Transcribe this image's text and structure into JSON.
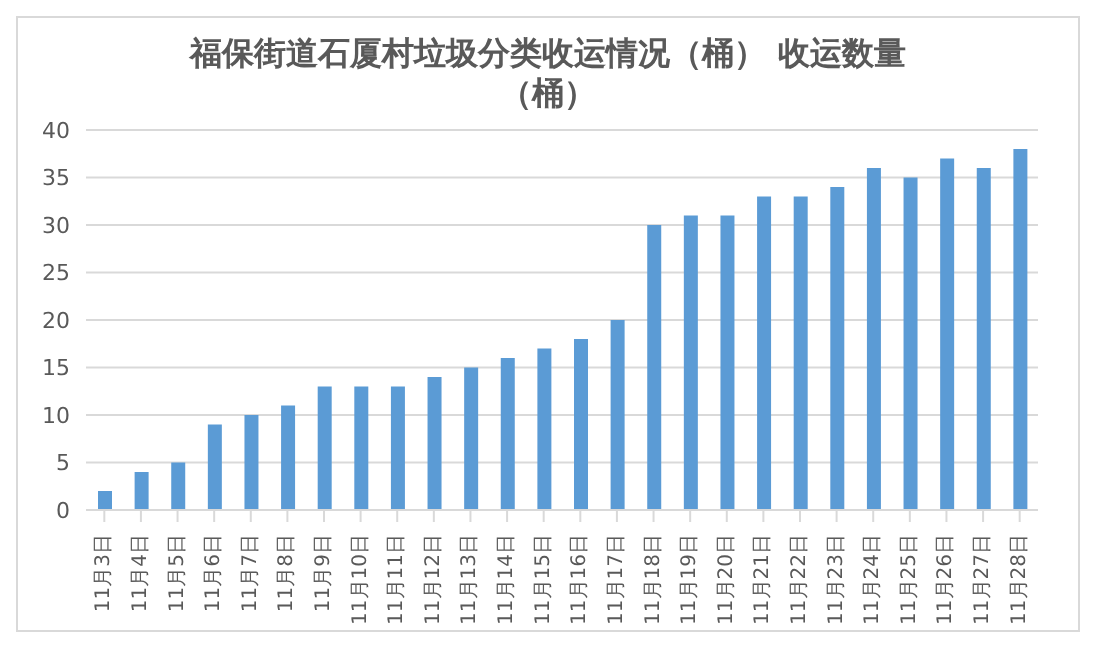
{
  "chart_data": {
    "type": "bar",
    "title": "福保街道石厦村垃圾分类收运情况（桶） 收运数量（桶）",
    "categories": [
      "11月3日",
      "11月4日",
      "11月5日",
      "11月6日",
      "11月7日",
      "11月8日",
      "11月9日",
      "11月10日",
      "11月11日",
      "11月12日",
      "11月13日",
      "11月14日",
      "11月15日",
      "11月16日",
      "11月17日",
      "11月18日",
      "11月19日",
      "11月20日",
      "11月21日",
      "11月22日",
      "11月23日",
      "11月24日",
      "11月25日",
      "11月26日",
      "11月27日",
      "11月28日"
    ],
    "values": [
      2,
      4,
      5,
      9,
      10,
      11,
      13,
      13,
      13,
      14,
      15,
      16,
      17,
      18,
      20,
      30,
      31,
      31,
      33,
      33,
      34,
      36,
      35,
      37,
      36,
      38
    ],
    "color": "#5b9bd5",
    "ylim": [
      0,
      40
    ],
    "yticks": [
      0,
      5,
      10,
      15,
      20,
      25,
      30,
      35,
      40
    ],
    "grid": "y"
  }
}
